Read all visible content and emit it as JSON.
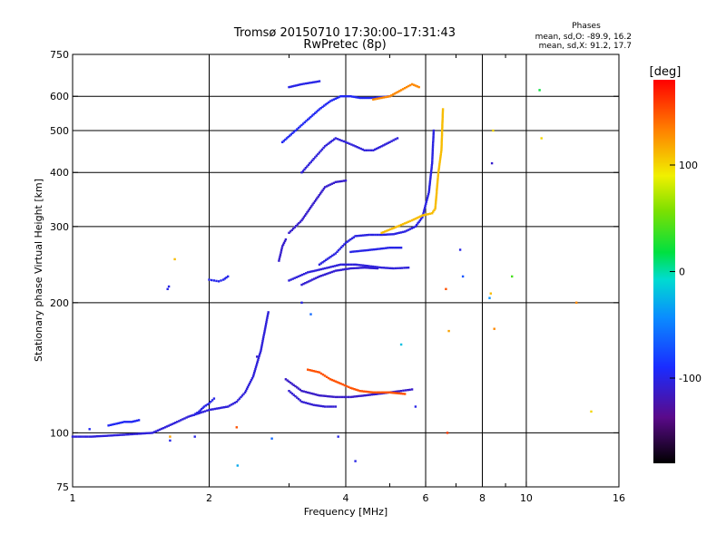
{
  "chart_data": {
    "type": "scatter",
    "title": "Tromsø 20150710 17:30:00–17:31:43",
    "subtitle": "RwPretec (8p)",
    "xlabel": "Frequency [MHz]",
    "ylabel": "Stationary phase Virtual Height [km]",
    "x_scale": "log",
    "y_scale": "log",
    "xlim": [
      1,
      16
    ],
    "ylim": [
      75,
      750
    ],
    "x_ticks": [
      1,
      2,
      4,
      6,
      8,
      10,
      16
    ],
    "x_tick_labels": [
      "1",
      "2",
      "4",
      "6",
      "8",
      "10",
      "16"
    ],
    "x_minor_ticks": [
      3,
      5,
      7,
      9
    ],
    "y_ticks": [
      75,
      100,
      200,
      300,
      400,
      500,
      600,
      750
    ],
    "y_tick_labels": [
      "75",
      "100",
      "200",
      "300",
      "400",
      "500",
      "600",
      "750"
    ],
    "grid": true,
    "stats": {
      "heading": "Phases",
      "line1": "mean, sd,O: -89.9, 16.2",
      "line2": "mean, sd,X:  91.2, 17.7"
    },
    "colorbar": {
      "label": "[deg]",
      "range": [
        -180,
        180
      ],
      "ticks": [
        100,
        0,
        -100
      ],
      "tick_labels": [
        "100",
        "0",
        "-100"
      ]
    },
    "traces": [
      {
        "phase": -105,
        "points": [
          [
            1.0,
            98
          ],
          [
            1.1,
            98
          ],
          [
            1.2,
            98.5
          ],
          [
            1.3,
            99
          ],
          [
            1.4,
            99.5
          ],
          [
            1.5,
            100
          ],
          [
            1.6,
            103
          ],
          [
            1.7,
            106
          ],
          [
            1.8,
            109
          ],
          [
            1.9,
            111
          ],
          [
            2.0,
            113
          ],
          [
            2.1,
            114
          ],
          [
            2.2,
            115
          ],
          [
            2.3,
            118
          ],
          [
            2.4,
            124
          ],
          [
            2.5,
            135
          ],
          [
            2.6,
            155
          ],
          [
            2.7,
            190
          ]
        ]
      },
      {
        "phase": -95,
        "points": [
          [
            1.2,
            104
          ],
          [
            1.25,
            105
          ],
          [
            1.3,
            106
          ],
          [
            1.35,
            106
          ],
          [
            1.4,
            107
          ]
        ]
      },
      {
        "phase": -100,
        "points": [
          [
            1.85,
            110
          ],
          [
            1.9,
            112
          ],
          [
            1.95,
            115
          ],
          [
            2.0,
            117
          ],
          [
            2.05,
            120
          ]
        ]
      },
      {
        "phase": -100,
        "points": [
          [
            1.62,
            215
          ],
          [
            1.63,
            218
          ]
        ]
      },
      {
        "phase": -98,
        "points": [
          [
            2.0,
            226
          ],
          [
            2.05,
            225
          ],
          [
            2.1,
            224
          ],
          [
            2.15,
            226
          ],
          [
            2.2,
            230
          ]
        ]
      },
      {
        "phase": -110,
        "points": [
          [
            2.85,
            250
          ],
          [
            2.9,
            270
          ],
          [
            2.95,
            280
          ]
        ]
      },
      {
        "phase": -108,
        "points": [
          [
            3.0,
            125
          ],
          [
            3.2,
            118
          ],
          [
            3.4,
            116
          ],
          [
            3.6,
            115
          ],
          [
            3.8,
            115
          ]
        ]
      },
      {
        "phase": -112,
        "points": [
          [
            2.95,
            133
          ],
          [
            3.2,
            125
          ],
          [
            3.5,
            122
          ],
          [
            3.8,
            121
          ],
          [
            4.1,
            121
          ],
          [
            4.4,
            122
          ],
          [
            4.7,
            123
          ],
          [
            5.0,
            124
          ],
          [
            5.3,
            125
          ],
          [
            5.6,
            126
          ]
        ]
      },
      {
        "phase": 150,
        "points": [
          [
            3.3,
            140
          ],
          [
            3.5,
            138
          ],
          [
            3.7,
            133
          ],
          [
            3.9,
            130
          ],
          [
            4.1,
            127
          ],
          [
            4.3,
            125
          ],
          [
            4.6,
            124
          ],
          [
            5.0,
            124
          ],
          [
            5.4,
            123
          ]
        ]
      },
      {
        "phase": -108,
        "points": [
          [
            3.2,
            220
          ],
          [
            3.5,
            230
          ],
          [
            3.8,
            237
          ],
          [
            4.1,
            240
          ],
          [
            4.4,
            241
          ],
          [
            4.7,
            240
          ]
        ]
      },
      {
        "phase": -105,
        "points": [
          [
            3.0,
            225
          ],
          [
            3.3,
            235
          ],
          [
            3.6,
            240
          ],
          [
            3.9,
            245
          ],
          [
            4.2,
            245
          ],
          [
            4.5,
            243
          ],
          [
            4.8,
            241
          ],
          [
            5.1,
            240
          ],
          [
            5.5,
            241
          ]
        ]
      },
      {
        "phase": -102,
        "points": [
          [
            3.5,
            245
          ],
          [
            3.8,
            260
          ],
          [
            4.0,
            275
          ],
          [
            4.2,
            285
          ],
          [
            4.5,
            287
          ],
          [
            4.8,
            287
          ],
          [
            5.1,
            288
          ],
          [
            5.4,
            292
          ],
          [
            5.7,
            300
          ],
          [
            5.9,
            315
          ],
          [
            6.1,
            360
          ],
          [
            6.2,
            420
          ],
          [
            6.25,
            500
          ]
        ]
      },
      {
        "phase": -100,
        "points": [
          [
            4.1,
            262
          ],
          [
            4.4,
            264
          ],
          [
            4.7,
            266
          ],
          [
            5.0,
            268
          ],
          [
            5.3,
            268
          ]
        ]
      },
      {
        "phase": 110,
        "points": [
          [
            4.8,
            290
          ],
          [
            5.2,
            300
          ],
          [
            5.6,
            310
          ],
          [
            5.9,
            318
          ],
          [
            6.2,
            322
          ],
          [
            6.3,
            330
          ],
          [
            6.4,
            400
          ],
          [
            6.5,
            450
          ],
          [
            6.55,
            560
          ]
        ]
      },
      {
        "phase": -110,
        "points": [
          [
            3.0,
            290
          ],
          [
            3.2,
            310
          ],
          [
            3.4,
            340
          ],
          [
            3.6,
            370
          ],
          [
            3.8,
            380
          ],
          [
            4.0,
            383
          ]
        ]
      },
      {
        "phase": -105,
        "points": [
          [
            3.2,
            400
          ],
          [
            3.4,
            430
          ],
          [
            3.6,
            460
          ],
          [
            3.8,
            480
          ],
          [
            4.0,
            470
          ],
          [
            4.2,
            460
          ],
          [
            4.4,
            450
          ],
          [
            4.6,
            450
          ],
          [
            4.8,
            460
          ],
          [
            5.0,
            470
          ],
          [
            5.2,
            480
          ]
        ]
      },
      {
        "phase": -95,
        "points": [
          [
            2.9,
            470
          ],
          [
            3.1,
            500
          ],
          [
            3.3,
            530
          ],
          [
            3.5,
            560
          ],
          [
            3.7,
            585
          ],
          [
            3.9,
            600
          ],
          [
            4.1,
            600
          ],
          [
            4.3,
            595
          ],
          [
            4.6,
            595
          ],
          [
            5.0,
            600
          ]
        ]
      },
      {
        "phase": 130,
        "points": [
          [
            4.6,
            590
          ],
          [
            5.0,
            600
          ],
          [
            5.3,
            620
          ],
          [
            5.6,
            640
          ],
          [
            5.8,
            630
          ]
        ]
      },
      {
        "phase": -100,
        "points": [
          [
            3.0,
            630
          ],
          [
            3.2,
            640
          ],
          [
            3.5,
            650
          ]
        ]
      }
    ],
    "scatter": [
      {
        "x": 1.09,
        "y": 102,
        "phase": -95
      },
      {
        "x": 1.64,
        "y": 96,
        "phase": -100
      },
      {
        "x": 1.64,
        "y": 98,
        "phase": 120
      },
      {
        "x": 1.68,
        "y": 252,
        "phase": 110
      },
      {
        "x": 1.86,
        "y": 98,
        "phase": -100
      },
      {
        "x": 2.3,
        "y": 103,
        "phase": 150
      },
      {
        "x": 2.31,
        "y": 84,
        "phase": -30
      },
      {
        "x": 2.75,
        "y": 97,
        "phase": -60
      },
      {
        "x": 3.35,
        "y": 188,
        "phase": -60
      },
      {
        "x": 3.85,
        "y": 98,
        "phase": -100
      },
      {
        "x": 4.2,
        "y": 86,
        "phase": -100
      },
      {
        "x": 5.7,
        "y": 115,
        "phase": -100
      },
      {
        "x": 6.65,
        "y": 215,
        "phase": 150
      },
      {
        "x": 6.7,
        "y": 100,
        "phase": 160
      },
      {
        "x": 6.75,
        "y": 172,
        "phase": 120
      },
      {
        "x": 7.25,
        "y": 230,
        "phase": -70
      },
      {
        "x": 8.3,
        "y": 205,
        "phase": -40
      },
      {
        "x": 8.35,
        "y": 210,
        "phase": 110
      },
      {
        "x": 8.4,
        "y": 420,
        "phase": -110
      },
      {
        "x": 8.45,
        "y": 500,
        "phase": 100
      },
      {
        "x": 8.5,
        "y": 174,
        "phase": 130
      },
      {
        "x": 9.3,
        "y": 230,
        "phase": 40
      },
      {
        "x": 10.7,
        "y": 620,
        "phase": 20
      },
      {
        "x": 10.8,
        "y": 480,
        "phase": 100
      },
      {
        "x": 12.9,
        "y": 200,
        "phase": 130
      },
      {
        "x": 13.9,
        "y": 112,
        "phase": 100
      },
      {
        "x": 7.15,
        "y": 265,
        "phase": -100
      },
      {
        "x": 5.3,
        "y": 160,
        "phase": -20
      },
      {
        "x": 2.55,
        "y": 150,
        "phase": -110
      },
      {
        "x": 3.2,
        "y": 200,
        "phase": -100
      }
    ]
  }
}
